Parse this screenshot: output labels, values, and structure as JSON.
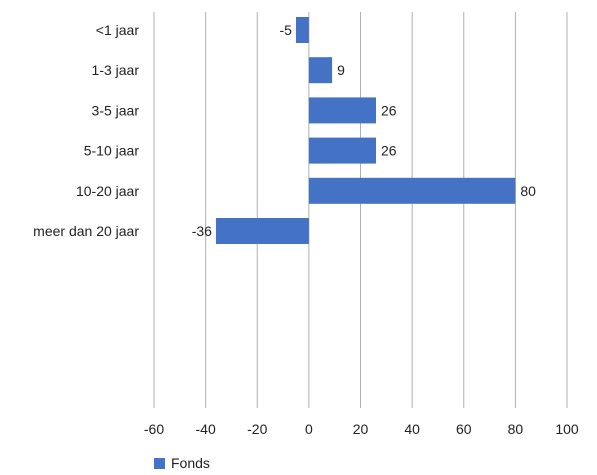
{
  "chart_data": {
    "type": "bar",
    "orientation": "horizontal",
    "categories": [
      "<1 jaar",
      "1-3 jaar",
      "3-5 jaar",
      "5-10 jaar",
      "10-20 jaar",
      "meer dan 20 jaar"
    ],
    "series": [
      {
        "name": "Fonds",
        "values": [
          -5,
          9,
          26,
          26,
          80,
          -36
        ],
        "color": "#4472c4"
      }
    ],
    "xlim": [
      -60,
      100
    ],
    "xticks": [
      -60,
      -40,
      -20,
      0,
      20,
      40,
      60,
      80,
      100
    ],
    "grid": "vertical",
    "legend": "bottom-left",
    "title": "",
    "xlabel": "",
    "ylabel": ""
  }
}
